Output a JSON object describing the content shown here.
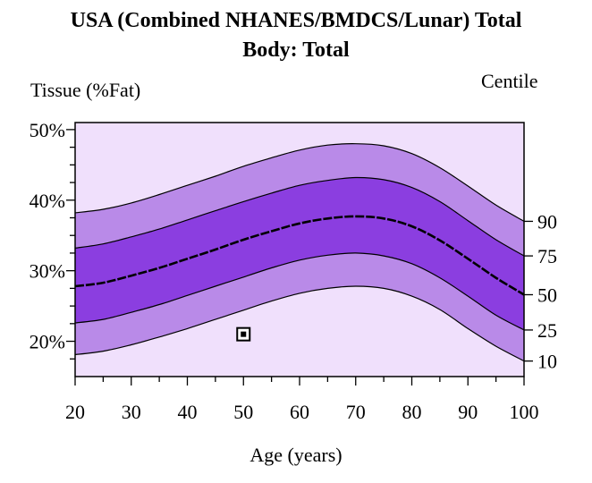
{
  "chart_data": {
    "type": "area",
    "title": "USA (Combined NHANES/BMDCS/Lunar) Total",
    "subtitle": "Body: Total",
    "ylabel": "Tissue (%Fat)",
    "xlabel": "Age (years)",
    "right_axis_label": "Centile",
    "xlim": [
      20,
      100
    ],
    "ylim": [
      15,
      51
    ],
    "x_ticks": [
      "20",
      "30",
      "40",
      "50",
      "60",
      "70",
      "80",
      "90",
      "100"
    ],
    "y_ticks": [
      {
        "value": 50,
        "label": "50%"
      },
      {
        "value": 40,
        "label": "40%"
      },
      {
        "value": 30,
        "label": "30%"
      },
      {
        "value": 20,
        "label": "20%"
      }
    ],
    "x": [
      20,
      25,
      30,
      35,
      40,
      45,
      50,
      55,
      60,
      65,
      70,
      75,
      80,
      85,
      90,
      95,
      100
    ],
    "series": [
      {
        "name": "10",
        "values": [
          18.1,
          18.6,
          19.5,
          20.6,
          21.8,
          23.1,
          24.4,
          25.7,
          26.8,
          27.5,
          27.8,
          27.5,
          26.4,
          24.5,
          21.8,
          19.3,
          17.2
        ]
      },
      {
        "name": "25",
        "values": [
          22.6,
          23.1,
          24.1,
          25.2,
          26.5,
          27.8,
          29.1,
          30.4,
          31.5,
          32.2,
          32.5,
          32.1,
          31.0,
          29.0,
          26.4,
          23.7,
          21.6
        ]
      },
      {
        "name": "50",
        "values": [
          27.8,
          28.3,
          29.3,
          30.4,
          31.7,
          33.0,
          34.4,
          35.6,
          36.7,
          37.4,
          37.7,
          37.4,
          36.3,
          34.3,
          31.7,
          29.0,
          26.6
        ]
      },
      {
        "name": "75",
        "values": [
          33.2,
          33.8,
          34.8,
          35.9,
          37.2,
          38.5,
          39.8,
          41.0,
          42.1,
          42.8,
          43.2,
          42.9,
          41.8,
          39.8,
          37.1,
          34.4,
          32.1
        ]
      },
      {
        "name": "90",
        "values": [
          38.2,
          38.7,
          39.6,
          40.8,
          42.1,
          43.4,
          44.8,
          46.0,
          47.1,
          47.8,
          48.0,
          47.7,
          46.6,
          44.6,
          42.0,
          39.3,
          37.0
        ]
      }
    ],
    "centile_labels": [
      "90",
      "75",
      "50",
      "25",
      "10"
    ],
    "patient_point": {
      "x": 50,
      "y": 21
    },
    "colors": {
      "background": "#f0e0fc",
      "band_outer": "#b98ae8",
      "band_inner": "#8b3ee0",
      "line": "#000000"
    },
    "grid": false
  }
}
